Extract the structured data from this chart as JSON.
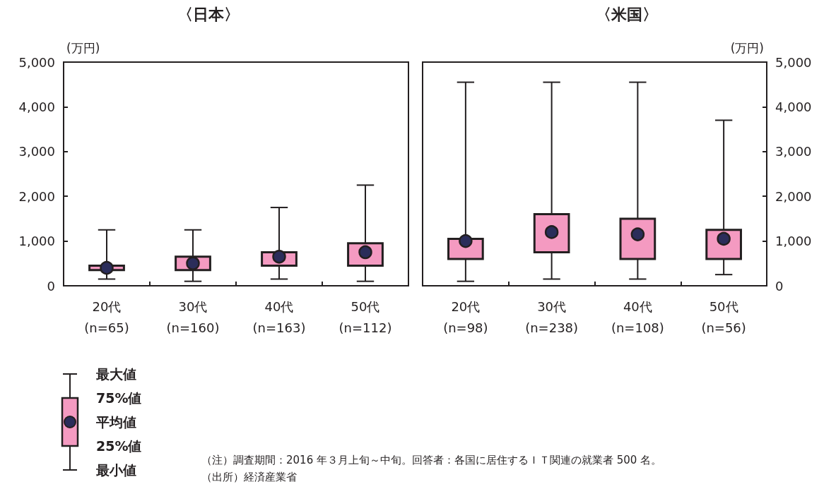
{
  "chart_data": [
    {
      "type": "box",
      "title": "〈日本〉",
      "ylabel": "(万円)",
      "categories": [
        "20代\n(n=65)",
        "30代\n(n=160)",
        "40代\n(n=163)",
        "50代\n(n=112)"
      ],
      "ylim": [
        0,
        5000
      ],
      "yticks": [
        0,
        {
          "value": 1000,
          "label": "1,000"
        },
        {
          "value": 2000,
          "label": "2,000"
        },
        {
          "value": 3000,
          "label": "3,000"
        },
        {
          "value": 4000,
          "label": "4,000"
        },
        {
          "value": 5000,
          "label": "5,000"
        }
      ],
      "grid": false,
      "series": [
        {
          "color": "#f49ac1",
          "boxes": [
            {
              "low": 150,
              "q1": 350,
              "q3": 450,
              "high": 1250,
              "mean": 400
            },
            {
              "low": 100,
              "q1": 350,
              "q3": 650,
              "high": 1250,
              "mean": 500
            },
            {
              "low": 150,
              "q1": 450,
              "q3": 750,
              "high": 1750,
              "mean": 650
            },
            {
              "low": 100,
              "q1": 450,
              "q3": 950,
              "high": 2250,
              "mean": 750
            }
          ]
        }
      ]
    },
    {
      "type": "box",
      "title": "〈米国〉",
      "y2label": "(万円)",
      "categories": [
        "20代\n(n=98)",
        "30代\n(n=238)",
        "40代\n(n=108)",
        "50代\n(n=56)"
      ],
      "y2lim": [
        0,
        5000
      ],
      "y2ticks": [
        0,
        {
          "value": 1000,
          "label": "1,000"
        },
        {
          "value": 2000,
          "label": "2,000"
        },
        {
          "value": 3000,
          "label": "3,000"
        },
        {
          "value": 4000,
          "label": "4,000"
        },
        {
          "value": 5000,
          "label": "5,000"
        }
      ],
      "grid": false,
      "annotations": [
        "（注）調査期間：2016 年３月上旬～中旬。回答者：各国に居住するＩＴ関連の就業者 500 名。",
        "（出所）経済産業省"
      ],
      "series": [
        {
          "color": "#f49ac1",
          "axis": "y2",
          "boxes": [
            {
              "low": 100,
              "q1": 600,
              "q3": 1050,
              "high": 4550,
              "mean": 1000
            },
            {
              "low": 150,
              "q1": 750,
              "q3": 1600,
              "high": 4550,
              "mean": 1200
            },
            {
              "low": 150,
              "q1": 600,
              "q3": 1500,
              "high": 4550,
              "mean": 1150
            },
            {
              "low": 250,
              "q1": 600,
              "q3": 1250,
              "high": 3700,
              "mean": 1050
            }
          ]
        }
      ]
    },
    {
      "type": "other",
      "annotations": [
        "最大値",
        "75%値",
        "平均値",
        "25%値",
        "最小値"
      ]
    }
  ]
}
